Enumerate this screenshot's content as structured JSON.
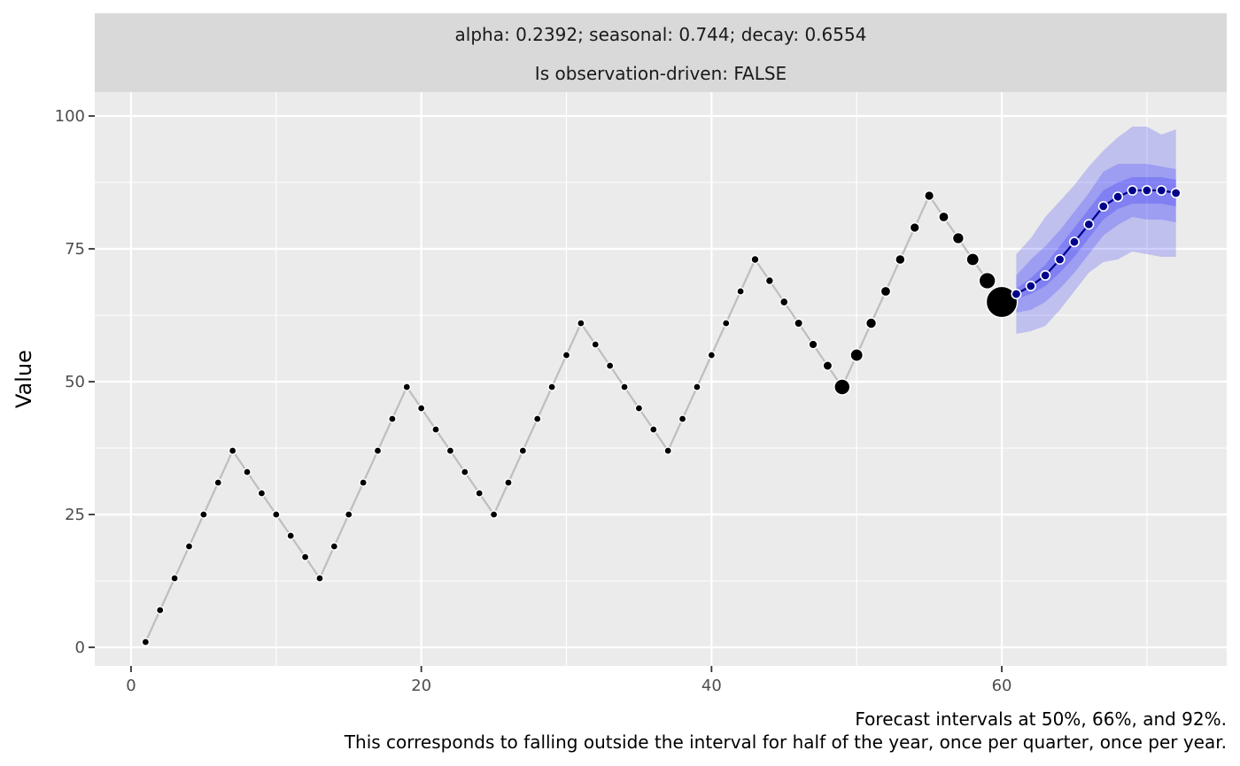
{
  "chart_data": {
    "type": "line",
    "strip": {
      "line1": "alpha: 0.2392; seasonal: 0.744; decay: 0.6554",
      "line2": "Is observation-driven: FALSE"
    },
    "xlabel": "",
    "ylabel": "Value",
    "xlim": [
      -2.5,
      75.5
    ],
    "ylim": [
      -3.5,
      104.5
    ],
    "x_ticks": [
      0,
      20,
      40,
      60
    ],
    "y_ticks": [
      0,
      25,
      50,
      75,
      100
    ],
    "grid": true,
    "caption": [
      "Forecast intervals at 50%, 66%, and 92%.",
      "This corresponds to falling outside the interval for half of the year, once per quarter, once per year."
    ],
    "history": {
      "x": [
        1,
        2,
        3,
        4,
        5,
        6,
        7,
        8,
        9,
        10,
        11,
        12,
        13,
        14,
        15,
        16,
        17,
        18,
        19,
        20,
        21,
        22,
        23,
        24,
        25,
        26,
        27,
        28,
        29,
        30,
        31,
        32,
        33,
        34,
        35,
        36,
        37,
        38,
        39,
        40,
        41,
        42,
        43,
        44,
        45,
        46,
        47,
        48,
        49,
        50,
        51,
        52,
        53,
        54,
        55,
        56,
        57,
        58,
        59,
        60
      ],
      "y": [
        1,
        7,
        13,
        19,
        25,
        31,
        37,
        33,
        29,
        25,
        21,
        17,
        13,
        19,
        25,
        31,
        37,
        43,
        49,
        45,
        41,
        37,
        33,
        29,
        25,
        31,
        37,
        43,
        49,
        55,
        61,
        57,
        53,
        49,
        45,
        41,
        37,
        43,
        49,
        55,
        61,
        67,
        73,
        69,
        65,
        61,
        57,
        53,
        49,
        55,
        61,
        67,
        73,
        79,
        85,
        81,
        77,
        73,
        69,
        65
      ],
      "weights": [
        0.1,
        0.1,
        0.1,
        0.1,
        0.1,
        0.1,
        0.1,
        0.1,
        0.1,
        0.1,
        0.1,
        0.1,
        0.1,
        0.1,
        0.1,
        0.1,
        0.1,
        0.1,
        0.1,
        0.1,
        0.1,
        0.1,
        0.1,
        0.1,
        0.1,
        0.1,
        0.1,
        0.1,
        0.1,
        0.1,
        0.1,
        0.1,
        0.1,
        0.1,
        0.1,
        0.1,
        0.1,
        0.1,
        0.1,
        0.1,
        0.1,
        0.1,
        0.12,
        0.12,
        0.13,
        0.14,
        0.15,
        0.17,
        0.42,
        0.3,
        0.22,
        0.2,
        0.19,
        0.18,
        0.18,
        0.2,
        0.25,
        0.3,
        0.45,
        1.0
      ]
    },
    "forecast": {
      "x": [
        61,
        62,
        63,
        64,
        65,
        66,
        67,
        68,
        69,
        70,
        71,
        72
      ],
      "y": [
        66.5,
        68,
        70,
        73,
        76.3,
        79.6,
        83,
        84.8,
        86,
        86,
        86,
        85.5
      ],
      "interval_50": {
        "lower": [
          65.5,
          66.5,
          68,
          70.5,
          73.5,
          77,
          80.5,
          82.5,
          83.5,
          83.5,
          83.5,
          83
        ],
        "upper": [
          67.5,
          69.5,
          72,
          75.5,
          79,
          82.5,
          86,
          87.5,
          88.5,
          88.5,
          88.5,
          88
        ]
      },
      "interval_66": {
        "lower": [
          63,
          63.5,
          65,
          67.5,
          70.5,
          74,
          77.5,
          79.5,
          81,
          80.5,
          80.5,
          80
        ],
        "upper": [
          70,
          73,
          75.5,
          78.5,
          82,
          85.5,
          89.5,
          91,
          91,
          91,
          90.5,
          90
        ]
      },
      "interval_92": {
        "lower": [
          59,
          59.5,
          60.5,
          63.5,
          67,
          70.5,
          72.5,
          73,
          74.5,
          74,
          73.5,
          73.5
        ],
        "upper": [
          74,
          77,
          81,
          84,
          87,
          90.5,
          93.5,
          96,
          98,
          98,
          96.5,
          97.5
        ]
      }
    },
    "colors": {
      "panel": "#ebebeb",
      "strip": "#d9d9d9",
      "grid": "#ffffff",
      "history_line": "#bebebe",
      "history_point": "#000000",
      "forecast_line": "#00008b",
      "forecast_point": "#00008b",
      "ribbon": "#0000ff"
    }
  }
}
